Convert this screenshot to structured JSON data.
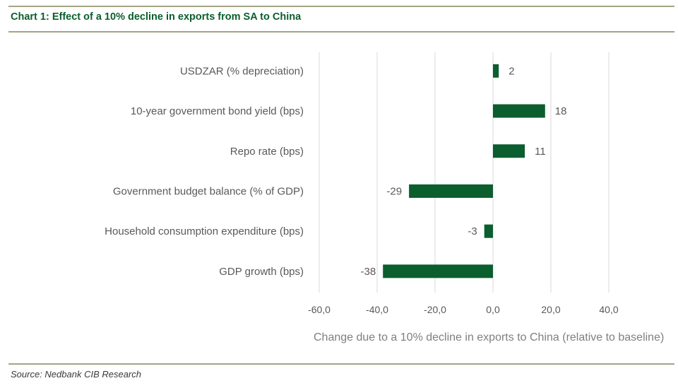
{
  "header": {
    "title": "Chart 1: Effect of a 10% decline in exports from SA to China"
  },
  "footer": {
    "source": "Source: Nedbank CIB Research"
  },
  "colors": {
    "bar": "#0b5e2e",
    "rule": "#a3a585",
    "grid": "#d9d9d9",
    "title": "#0b5e2e"
  },
  "chart_data": {
    "type": "bar",
    "orientation": "horizontal",
    "categories": [
      "USDZAR (% depreciation)",
      "10-year government bond yield (bps) ",
      "Repo rate (bps)",
      "Government budget balance (% of GDP)",
      "Household consumption expenditure (bps)",
      "GDP growth (bps)"
    ],
    "values": [
      2,
      18,
      11,
      -29,
      -3,
      -38
    ],
    "data_labels": [
      "2",
      "18",
      "11",
      "-29",
      "-3",
      "-38"
    ],
    "title": "",
    "xlabel": "Change due to a 10% decline in exports to China (relative to baseline)",
    "ylabel": "",
    "xlim": [
      -60,
      40
    ],
    "xticks": [
      -60,
      -40,
      -20,
      0,
      20,
      40
    ],
    "xtick_labels": [
      "-60,0",
      "-40,0",
      "-20,0",
      "0,0",
      "20,0",
      "40,0"
    ],
    "grid": true,
    "legend": "none"
  }
}
